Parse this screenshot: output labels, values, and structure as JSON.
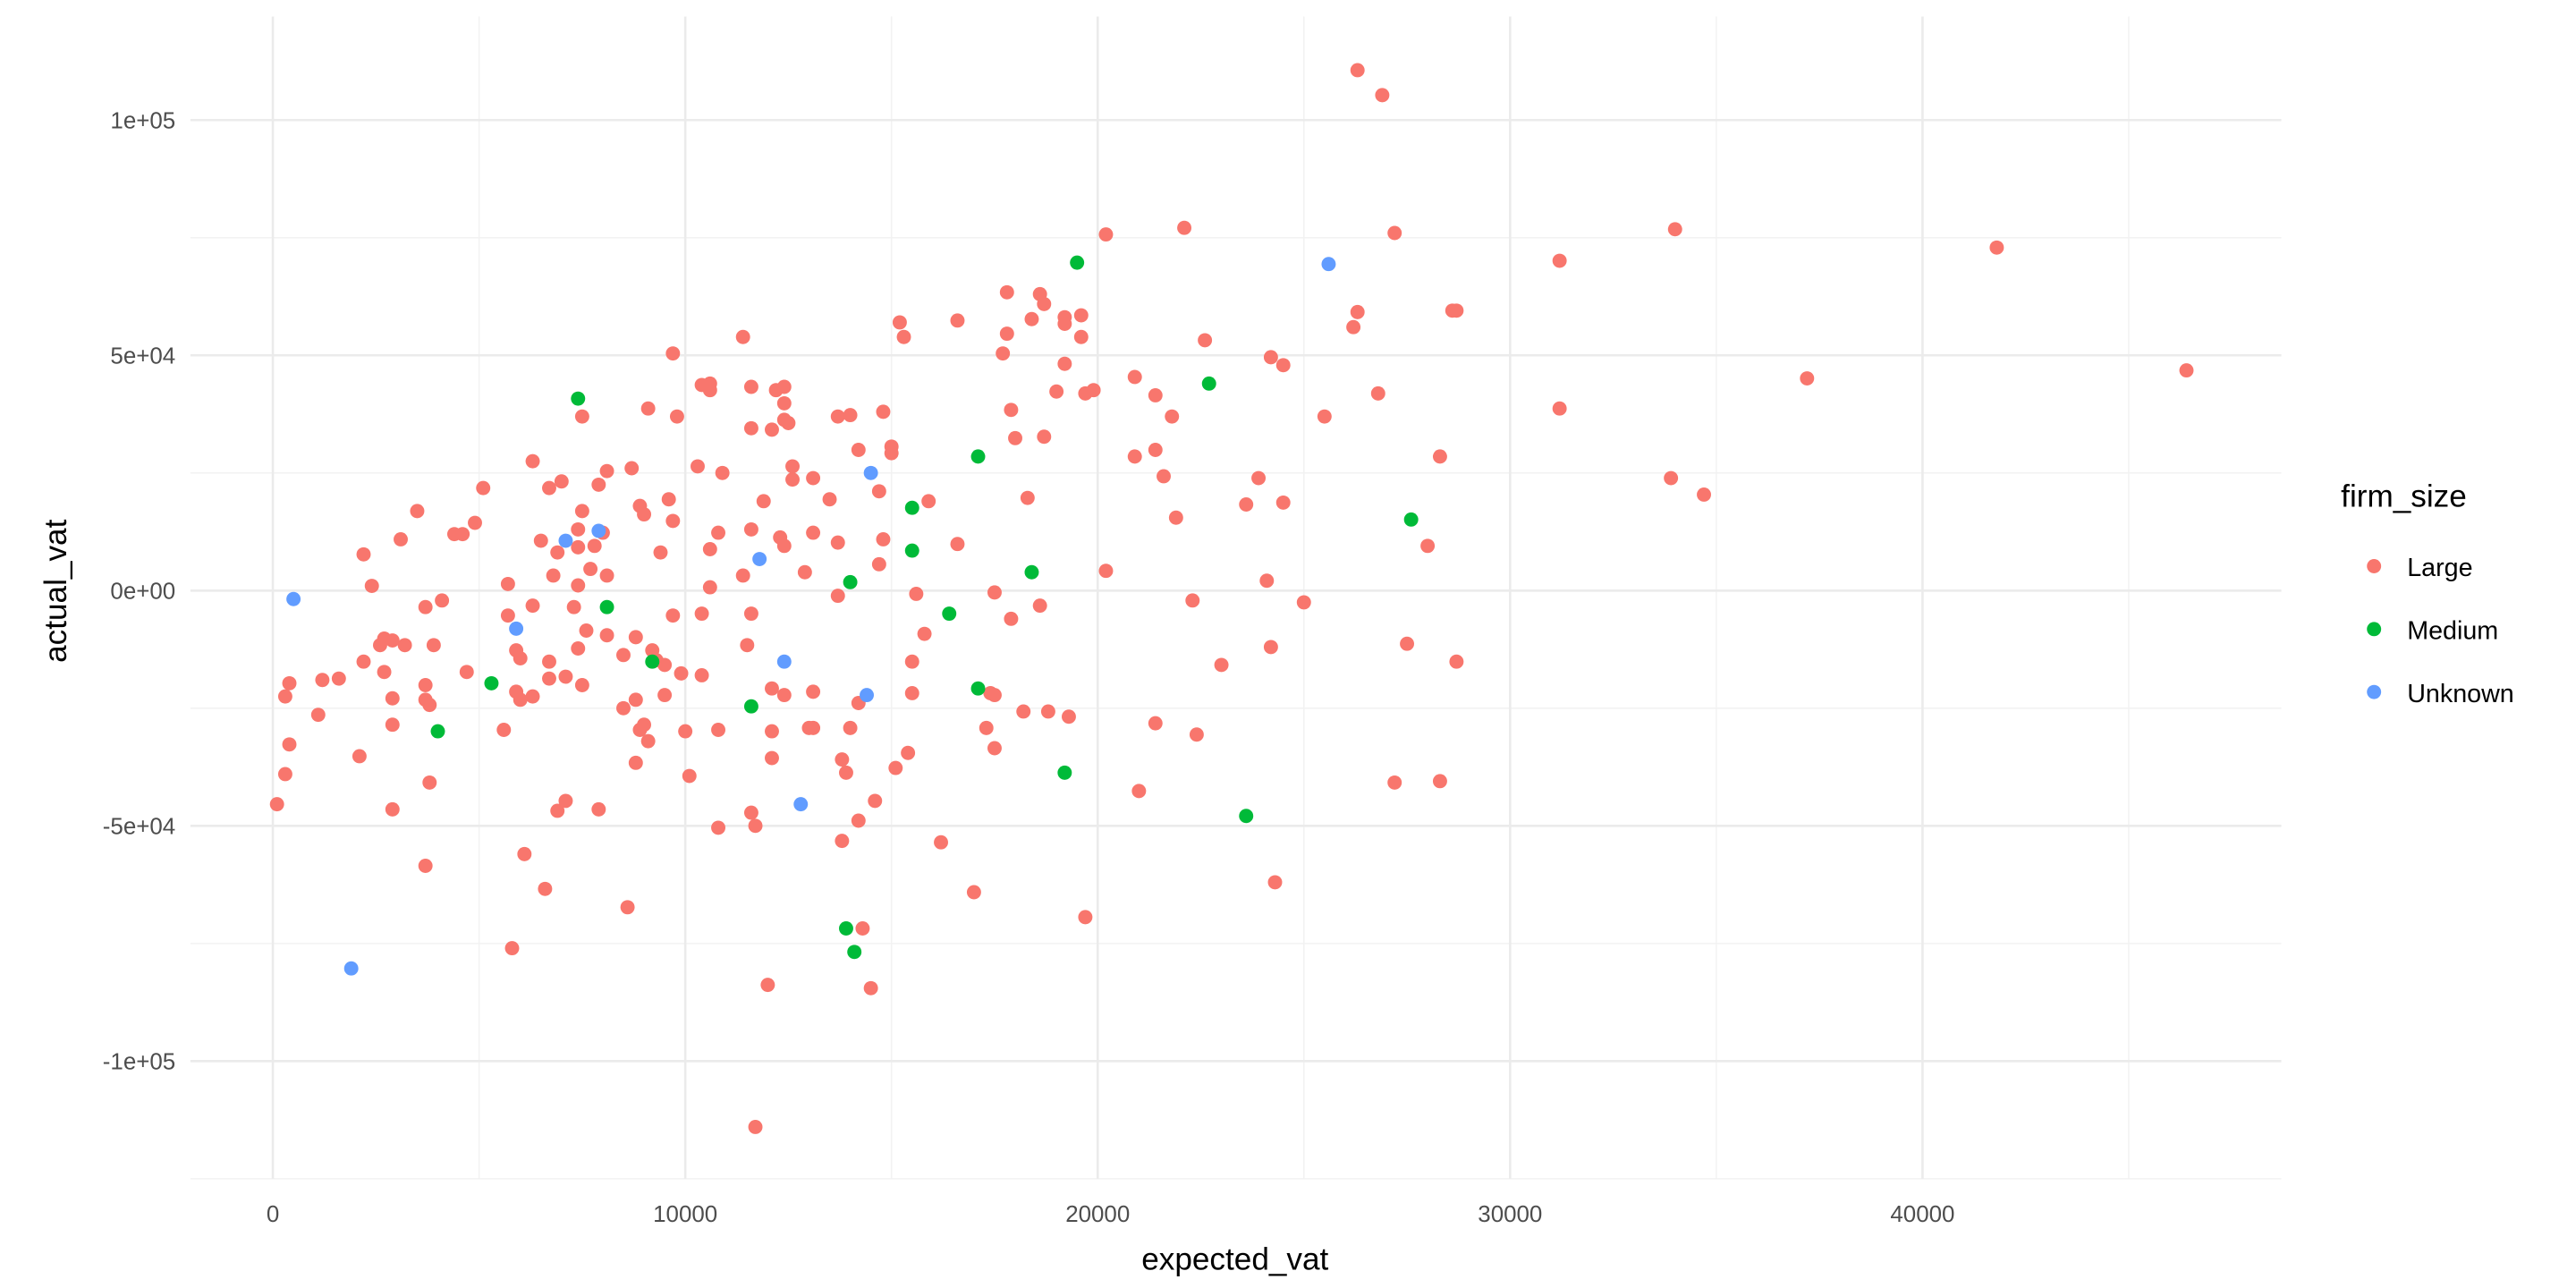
{
  "chart_data": {
    "type": "scatter",
    "xlabel": "expected_vat",
    "ylabel": "actual_vat",
    "xlim": [
      -2000,
      48700
    ],
    "ylim": [
      -125000,
      122000
    ],
    "x_ticks": [
      0,
      10000,
      20000,
      30000,
      40000
    ],
    "x_tick_labels": [
      "0",
      "10000",
      "20000",
      "30000",
      "40000"
    ],
    "y_ticks": [
      -100000,
      -50000,
      0,
      50000,
      100000
    ],
    "y_tick_labels": [
      "-1e+05",
      "-5e+04",
      "0e+00",
      "5e+04",
      "1e+05"
    ],
    "grid": true,
    "legend": {
      "title": "firm_size",
      "placement": "right"
    },
    "series": [
      {
        "name": "Large",
        "color": "#F8766D",
        "points": [
          [
            100,
            -45400
          ],
          [
            300,
            -22500
          ],
          [
            400,
            -19700
          ],
          [
            300,
            -39000
          ],
          [
            400,
            -32700
          ],
          [
            1100,
            -26400
          ],
          [
            1200,
            -19000
          ],
          [
            1600,
            -18700
          ],
          [
            2100,
            -35200
          ],
          [
            2200,
            -15100
          ],
          [
            2200,
            7700
          ],
          [
            2400,
            1000
          ],
          [
            2600,
            -11600
          ],
          [
            2700,
            -10200
          ],
          [
            2700,
            -17300
          ],
          [
            2900,
            -10600
          ],
          [
            2900,
            -22900
          ],
          [
            2900,
            -28500
          ],
          [
            2900,
            -46500
          ],
          [
            3100,
            10900
          ],
          [
            3200,
            -11600
          ],
          [
            3500,
            16900
          ],
          [
            3700,
            -3500
          ],
          [
            3700,
            -20100
          ],
          [
            3700,
            -23200
          ],
          [
            3800,
            -24300
          ],
          [
            3900,
            -11600
          ],
          [
            3800,
            -40800
          ],
          [
            3700,
            -58500
          ],
          [
            4100,
            -2100
          ],
          [
            4400,
            12000
          ],
          [
            4600,
            12000
          ],
          [
            4700,
            -17300
          ],
          [
            4900,
            14400
          ],
          [
            5100,
            21800
          ],
          [
            5600,
            -29600
          ],
          [
            5700,
            1400
          ],
          [
            5700,
            -5300
          ],
          [
            5800,
            -76000
          ],
          [
            5900,
            -12700
          ],
          [
            5900,
            -21500
          ],
          [
            6000,
            -14400
          ],
          [
            6000,
            -23200
          ],
          [
            6100,
            -56000
          ],
          [
            6300,
            27500
          ],
          [
            6300,
            -3200
          ],
          [
            6300,
            -22500
          ],
          [
            6500,
            10600
          ],
          [
            6600,
            -63400
          ],
          [
            6700,
            -15100
          ],
          [
            6700,
            -18700
          ],
          [
            6700,
            21800
          ],
          [
            6800,
            3200
          ],
          [
            6900,
            8100
          ],
          [
            6900,
            -46800
          ],
          [
            7000,
            23200
          ],
          [
            7100,
            -18300
          ],
          [
            7100,
            -44700
          ],
          [
            7300,
            -3500
          ],
          [
            7400,
            1100
          ],
          [
            7400,
            -12300
          ],
          [
            7400,
            9200
          ],
          [
            7400,
            13000
          ],
          [
            7500,
            37000
          ],
          [
            7500,
            -20100
          ],
          [
            7500,
            16900
          ],
          [
            7600,
            -8500
          ],
          [
            7700,
            4600
          ],
          [
            7800,
            9500
          ],
          [
            7900,
            22500
          ],
          [
            7900,
            -46500
          ],
          [
            8000,
            12300
          ],
          [
            8100,
            25400
          ],
          [
            8100,
            -9500
          ],
          [
            8100,
            3200
          ],
          [
            8500,
            -13700
          ],
          [
            8500,
            -25000
          ],
          [
            8600,
            -67300
          ],
          [
            8700,
            26000
          ],
          [
            8800,
            -9900
          ],
          [
            8800,
            -36600
          ],
          [
            8800,
            -23200
          ],
          [
            8900,
            -29600
          ],
          [
            8900,
            18000
          ],
          [
            9000,
            16200
          ],
          [
            9000,
            -28500
          ],
          [
            9100,
            -32000
          ],
          [
            9100,
            38700
          ],
          [
            9200,
            -12700
          ],
          [
            9300,
            -14800
          ],
          [
            9400,
            8100
          ],
          [
            9500,
            -15800
          ],
          [
            9500,
            -22200
          ],
          [
            9600,
            19400
          ],
          [
            9700,
            14800
          ],
          [
            9700,
            -5300
          ],
          [
            9700,
            50400
          ],
          [
            9800,
            37000
          ],
          [
            9900,
            -17600
          ],
          [
            10000,
            -29900
          ],
          [
            10100,
            -39400
          ],
          [
            10300,
            26400
          ],
          [
            10400,
            -4900
          ],
          [
            10400,
            43700
          ],
          [
            10600,
            700
          ],
          [
            10600,
            44000
          ],
          [
            10600,
            42600
          ],
          [
            10400,
            -18000
          ],
          [
            10600,
            8800
          ],
          [
            10800,
            -50400
          ],
          [
            10800,
            -29600
          ],
          [
            10800,
            12300
          ],
          [
            10900,
            25000
          ],
          [
            11400,
            53900
          ],
          [
            11400,
            3200
          ],
          [
            11500,
            -11600
          ],
          [
            11600,
            34500
          ],
          [
            11600,
            43300
          ],
          [
            11600,
            -47200
          ],
          [
            11600,
            13000
          ],
          [
            11600,
            -4900
          ],
          [
            11700,
            -50000
          ],
          [
            11700,
            -114000
          ],
          [
            11900,
            19000
          ],
          [
            12000,
            -83800
          ],
          [
            12100,
            -20800
          ],
          [
            12100,
            -29900
          ],
          [
            12100,
            -35600
          ],
          [
            12100,
            34200
          ],
          [
            12200,
            42600
          ],
          [
            12300,
            11300
          ],
          [
            12400,
            9500
          ],
          [
            12400,
            43300
          ],
          [
            12400,
            39800
          ],
          [
            12400,
            36300
          ],
          [
            12400,
            -22200
          ],
          [
            12500,
            35600
          ],
          [
            12600,
            23600
          ],
          [
            12600,
            26400
          ],
          [
            12900,
            3900
          ],
          [
            13000,
            -29200
          ],
          [
            13100,
            -21500
          ],
          [
            13100,
            23900
          ],
          [
            13100,
            -29200
          ],
          [
            13100,
            12300
          ],
          [
            13500,
            19400
          ],
          [
            13700,
            37000
          ],
          [
            13700,
            10200
          ],
          [
            13700,
            -1100
          ],
          [
            13800,
            -35900
          ],
          [
            13900,
            -38700
          ],
          [
            13800,
            -53200
          ],
          [
            14000,
            37300
          ],
          [
            14000,
            -29200
          ],
          [
            14200,
            29900
          ],
          [
            14200,
            -23900
          ],
          [
            14200,
            -48900
          ],
          [
            14300,
            -71800
          ],
          [
            14500,
            -84500
          ],
          [
            14600,
            -44700
          ],
          [
            14700,
            21100
          ],
          [
            14700,
            5600
          ],
          [
            14800,
            10900
          ],
          [
            14800,
            38000
          ],
          [
            15000,
            30600
          ],
          [
            15000,
            29200
          ],
          [
            15100,
            -37700
          ],
          [
            15200,
            57000
          ],
          [
            15300,
            53900
          ],
          [
            15400,
            -34500
          ],
          [
            15500,
            -15100
          ],
          [
            15500,
            -21800
          ],
          [
            15600,
            -700
          ],
          [
            15900,
            19000
          ],
          [
            15800,
            -9200
          ],
          [
            16200,
            -53500
          ],
          [
            16600,
            57400
          ],
          [
            16600,
            9900
          ],
          [
            17000,
            -64100
          ],
          [
            17400,
            -21800
          ],
          [
            17300,
            -29200
          ],
          [
            17500,
            -33500
          ],
          [
            17500,
            -22200
          ],
          [
            17500,
            -400
          ],
          [
            17700,
            50400
          ],
          [
            17800,
            54600
          ],
          [
            17800,
            63400
          ],
          [
            17900,
            38400
          ],
          [
            17900,
            -6000
          ],
          [
            18000,
            32400
          ],
          [
            18200,
            -25700
          ],
          [
            18300,
            19700
          ],
          [
            18400,
            57700
          ],
          [
            18600,
            -3200
          ],
          [
            18600,
            63000
          ],
          [
            18700,
            60900
          ],
          [
            18700,
            32700
          ],
          [
            18800,
            -25700
          ],
          [
            19000,
            42300
          ],
          [
            19200,
            56700
          ],
          [
            19200,
            58100
          ],
          [
            19200,
            48200
          ],
          [
            19300,
            -26800
          ],
          [
            19600,
            53900
          ],
          [
            19600,
            58500
          ],
          [
            19700,
            -69400
          ],
          [
            19700,
            41900
          ],
          [
            19900,
            42600
          ],
          [
            20200,
            75700
          ],
          [
            20200,
            4200
          ],
          [
            20900,
            45400
          ],
          [
            20900,
            28500
          ],
          [
            21000,
            -42600
          ],
          [
            21400,
            29900
          ],
          [
            21400,
            41500
          ],
          [
            21400,
            -28200
          ],
          [
            21600,
            24300
          ],
          [
            21800,
            37000
          ],
          [
            21900,
            15500
          ],
          [
            22100,
            77100
          ],
          [
            22300,
            -2100
          ],
          [
            22400,
            -30600
          ],
          [
            22600,
            53200
          ],
          [
            23000,
            -15800
          ],
          [
            23600,
            18300
          ],
          [
            23900,
            23900
          ],
          [
            24100,
            2100
          ],
          [
            24200,
            49600
          ],
          [
            24200,
            -12000
          ],
          [
            24300,
            -62000
          ],
          [
            24500,
            18700
          ],
          [
            24500,
            47900
          ],
          [
            25000,
            -2500
          ],
          [
            25500,
            37000
          ],
          [
            26300,
            110600
          ],
          [
            26200,
            56000
          ],
          [
            26300,
            59200
          ],
          [
            26800,
            41900
          ],
          [
            26900,
            105300
          ],
          [
            27200,
            -40800
          ],
          [
            27200,
            76000
          ],
          [
            27500,
            -11300
          ],
          [
            28000,
            9500
          ],
          [
            28300,
            28500
          ],
          [
            28300,
            -40500
          ],
          [
            28600,
            59500
          ],
          [
            28700,
            59500
          ],
          [
            28700,
            -15100
          ],
          [
            31200,
            70100
          ],
          [
            31200,
            38700
          ],
          [
            33900,
            23900
          ],
          [
            34000,
            76800
          ],
          [
            34700,
            20400
          ],
          [
            37200,
            45100
          ],
          [
            41800,
            72900
          ],
          [
            46400,
            46800
          ]
        ]
      },
      {
        "name": "Medium",
        "color": "#00BA38",
        "points": [
          [
            7400,
            40800
          ],
          [
            8100,
            -3500
          ],
          [
            4000,
            -29900
          ],
          [
            5300,
            -19700
          ],
          [
            9200,
            -15100
          ],
          [
            11600,
            -24600
          ],
          [
            14000,
            1800
          ],
          [
            13900,
            -71800
          ],
          [
            14100,
            -76800
          ],
          [
            15500,
            17600
          ],
          [
            15500,
            8500
          ],
          [
            16400,
            -4900
          ],
          [
            17100,
            28500
          ],
          [
            17100,
            -20800
          ],
          [
            18400,
            3900
          ],
          [
            19200,
            -38700
          ],
          [
            19500,
            69700
          ],
          [
            22700,
            44000
          ],
          [
            23600,
            -47900
          ],
          [
            27600,
            15100
          ]
        ]
      },
      {
        "name": "Unknown",
        "color": "#619CFF",
        "points": [
          [
            500,
            -1800
          ],
          [
            1900,
            -80300
          ],
          [
            5900,
            -8100
          ],
          [
            7100,
            10600
          ],
          [
            7900,
            12700
          ],
          [
            11800,
            6700
          ],
          [
            12400,
            -15100
          ],
          [
            12800,
            -45400
          ],
          [
            14400,
            -22200
          ],
          [
            14500,
            25000
          ],
          [
            25600,
            69400
          ]
        ]
      }
    ]
  }
}
